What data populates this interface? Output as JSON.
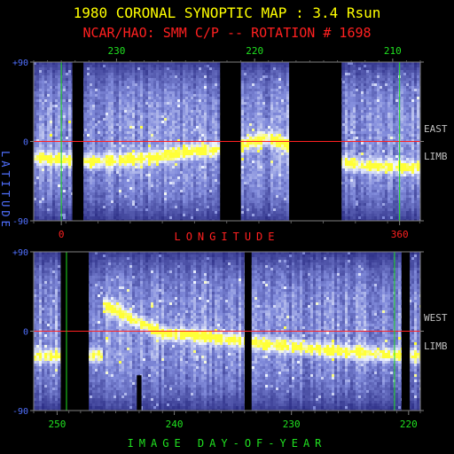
{
  "chart_data": {
    "type": "heatmap",
    "title": "1980 CORONAL SYNOPTIC MAP : 3.4 Rsun",
    "subtitle": "NCAR/HAO: SMM C/P -- ROTATION # 1698",
    "colors": {
      "title": "#ffff00",
      "subtitle": "#ff2020",
      "axis_text": "#5070ff",
      "green_ticks": "#20e020",
      "red_ticks": "#ff2020",
      "equator_line": "#ff2020",
      "marker_lines": "#20e020",
      "limb_text": "#c0c0c0",
      "data_gap": "#000000"
    },
    "panels": [
      {
        "id": "east",
        "limb_label": [
          "EAST",
          "LIMB"
        ],
        "top_axis_label": "",
        "top_ticks": [
          "230",
          "220",
          "210"
        ],
        "top_tick_values": [
          230,
          220,
          210
        ],
        "y_ticks": [
          "+90",
          "0",
          "-90"
        ],
        "y_tick_values": [
          90,
          0,
          -90
        ],
        "day_range": [
          236,
          208
        ],
        "bottom_ticks": [
          "0",
          "360"
        ],
        "bottom_tick_values": [
          0,
          360
        ],
        "bottom_axis_label": "LONGITUDE",
        "marker_days": [
          234,
          209.5
        ],
        "gaps_days": [
          [
            233.2,
            232.4
          ],
          [
            222.5,
            221.0
          ],
          [
            217.5,
            213.7
          ]
        ],
        "streamer": [
          [
            236,
            -18
          ],
          [
            232,
            -23
          ],
          [
            228,
            -20
          ],
          [
            225,
            -12
          ],
          [
            222,
            -8
          ],
          [
            219,
            4
          ],
          [
            215,
            -20
          ],
          [
            212,
            -28
          ],
          [
            208,
            -30
          ]
        ]
      },
      {
        "id": "west",
        "limb_label": [
          "WEST",
          "LIMB"
        ],
        "y_ticks": [
          "+90",
          "0",
          "-90"
        ],
        "y_tick_values": [
          90,
          0,
          -90
        ],
        "day_range": [
          252,
          219
        ],
        "bottom_ticks": [
          "250",
          "240",
          "230",
          "220"
        ],
        "bottom_tick_values": [
          250,
          240,
          230,
          220
        ],
        "bottom_axis_label": "IMAGE DAY-OF-YEAR",
        "marker_days": [
          249.2,
          221.2
        ],
        "gaps_days": [
          [
            249.7,
            247.3
          ],
          [
            234.0,
            233.4
          ],
          [
            220.6,
            219.9
          ],
          [
            243.2,
            242.8
          ]
        ],
        "streamer": [
          [
            246,
            30
          ],
          [
            243,
            10
          ],
          [
            241,
            -3
          ],
          [
            238,
            -5
          ],
          [
            235,
            -10
          ],
          [
            232,
            -15
          ],
          [
            228,
            -20
          ],
          [
            224,
            -25
          ],
          [
            220,
            -28
          ]
        ]
      }
    ],
    "y_axis_label": "LATITUDE"
  }
}
